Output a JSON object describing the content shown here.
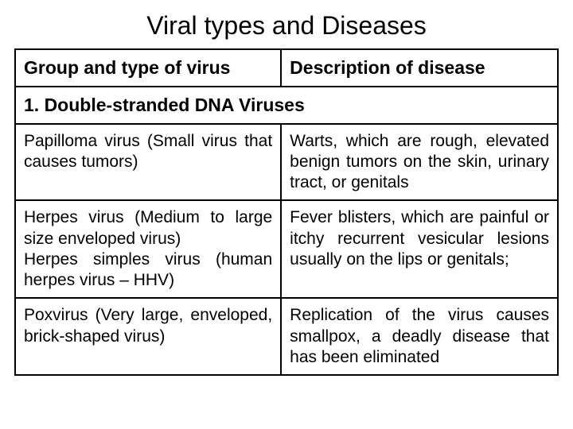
{
  "title": "Viral types and Diseases",
  "table": {
    "columns": [
      {
        "label": "Group and type of virus"
      },
      {
        "label": "Description of disease"
      }
    ],
    "section": "1. Double-stranded DNA Viruses",
    "rows": [
      {
        "group": "Papilloma virus (Small virus that causes tumors)",
        "desc": "Warts, which are rough, elevated benign tumors on the skin, urinary tract, or genitals"
      },
      {
        "group": "Herpes virus (Medium to large size enveloped virus)\nHerpes simples virus (human herpes virus – HHV)",
        "desc": "Fever blisters, which are painful or itchy recurrent vesicular lesions usually on the lips or genitals;"
      },
      {
        "group": "Poxvirus (Very large, enveloped, brick-shaped virus)",
        "desc": "Replication of the virus causes smallpox, a deadly disease that has been eliminated"
      }
    ]
  },
  "colors": {
    "background": "#ffffff",
    "text": "#000000",
    "border": "#000000"
  }
}
